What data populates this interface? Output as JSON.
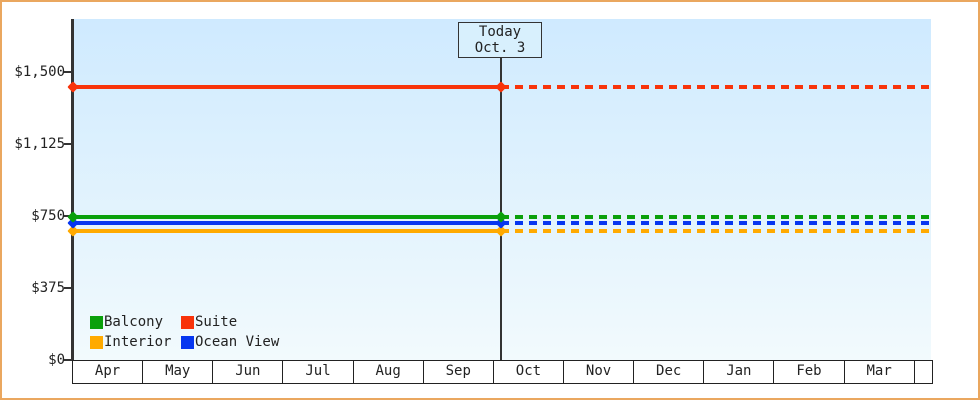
{
  "page": {
    "border_color": "#eaa75f",
    "background": "#ffffff",
    "plot_bg_top": "#cfeaff",
    "plot_bg_bottom": "#f2fafd",
    "axis_color": "#333333"
  },
  "chart_data": {
    "type": "line",
    "title": "",
    "xlabel": "",
    "ylabel": "",
    "ylim": [
      0,
      1500
    ],
    "grid": false,
    "legend_position": "bottom-left-inside",
    "categories": [
      "Apr",
      "May",
      "Jun",
      "Jul",
      "Aug",
      "Sep",
      "Oct",
      "Nov",
      "Dec",
      "Jan",
      "Feb",
      "Mar"
    ],
    "y_ticks": [
      {
        "value": 0,
        "label": "$0"
      },
      {
        "value": 375,
        "label": "$375"
      },
      {
        "value": 750,
        "label": "$750"
      },
      {
        "value": 1125,
        "label": "$1,125"
      },
      {
        "value": 1500,
        "label": "$1,500"
      }
    ],
    "series": [
      {
        "name": "Suite",
        "color": "#f8330a",
        "value": 1420,
        "constant": true,
        "style": "solid-then-dotted"
      },
      {
        "name": "Balcony",
        "color": "#0aa00b",
        "value": 745,
        "constant": true,
        "style": "solid-then-dotted"
      },
      {
        "name": "Ocean View",
        "color": "#0636f0",
        "value": 715,
        "constant": true,
        "style": "solid-then-dotted"
      },
      {
        "name": "Interior",
        "color": "#ffaa00",
        "value": 670,
        "constant": true,
        "style": "solid-then-dotted"
      }
    ],
    "today": {
      "line1": "Today",
      "line2": "Oct. 3",
      "month": "Oct",
      "day": 3
    },
    "legend": [
      {
        "name": "Balcony",
        "color": "#0aa00b"
      },
      {
        "name": "Suite",
        "color": "#f8330a"
      },
      {
        "name": "Interior",
        "color": "#ffaa00"
      },
      {
        "name": "Ocean View",
        "color": "#0636f0"
      }
    ]
  }
}
